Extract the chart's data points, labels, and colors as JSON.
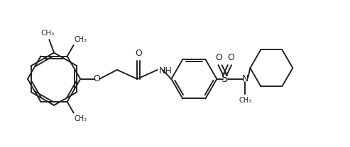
{
  "background": "#ffffff",
  "line_color": "#222222",
  "line_width": 1.4,
  "font_size": 8.5,
  "fig_width": 4.93,
  "fig_height": 2.08,
  "dpi": 100,
  "xlim": [
    0,
    9.5
  ],
  "ylim": [
    0,
    4.0
  ]
}
